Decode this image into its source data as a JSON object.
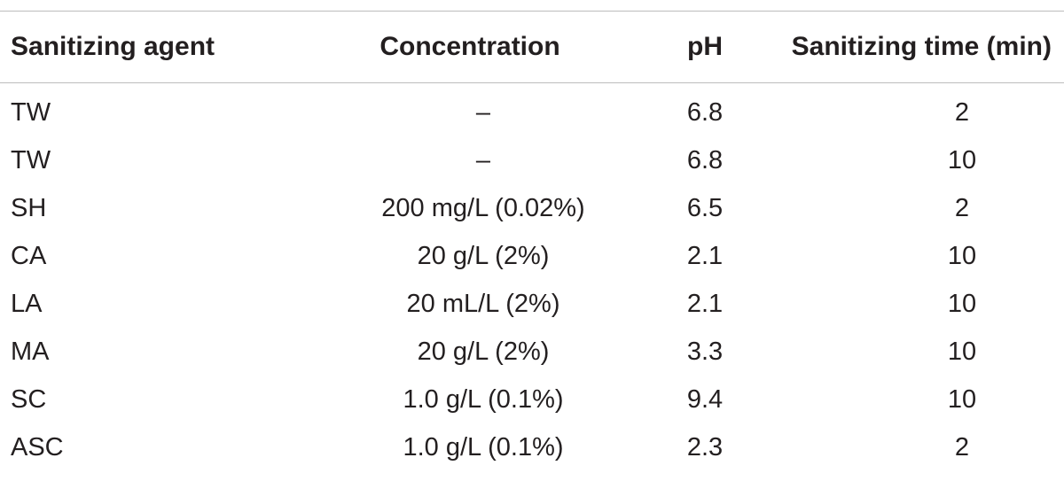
{
  "table": {
    "headers": [
      "Sanitizing agent",
      "Concentration",
      "pH",
      "Sanitizing time (min)"
    ],
    "rows": [
      [
        "TW",
        "–",
        "6.8",
        "2"
      ],
      [
        "TW",
        "–",
        "6.8",
        "10"
      ],
      [
        "SH",
        "200 mg/L (0.02%)",
        "6.5",
        "2"
      ],
      [
        "CA",
        "20 g/L (2%)",
        "2.1",
        "10"
      ],
      [
        "LA",
        "20 mL/L (2%)",
        "2.1",
        "10"
      ],
      [
        "MA",
        "20 g/L (2%)",
        "3.3",
        "10"
      ],
      [
        "SC",
        "1.0 g/L (0.1%)",
        "9.4",
        "10"
      ],
      [
        "ASC",
        "1.0 g/L (0.1%)",
        "2.3",
        "2"
      ]
    ]
  }
}
